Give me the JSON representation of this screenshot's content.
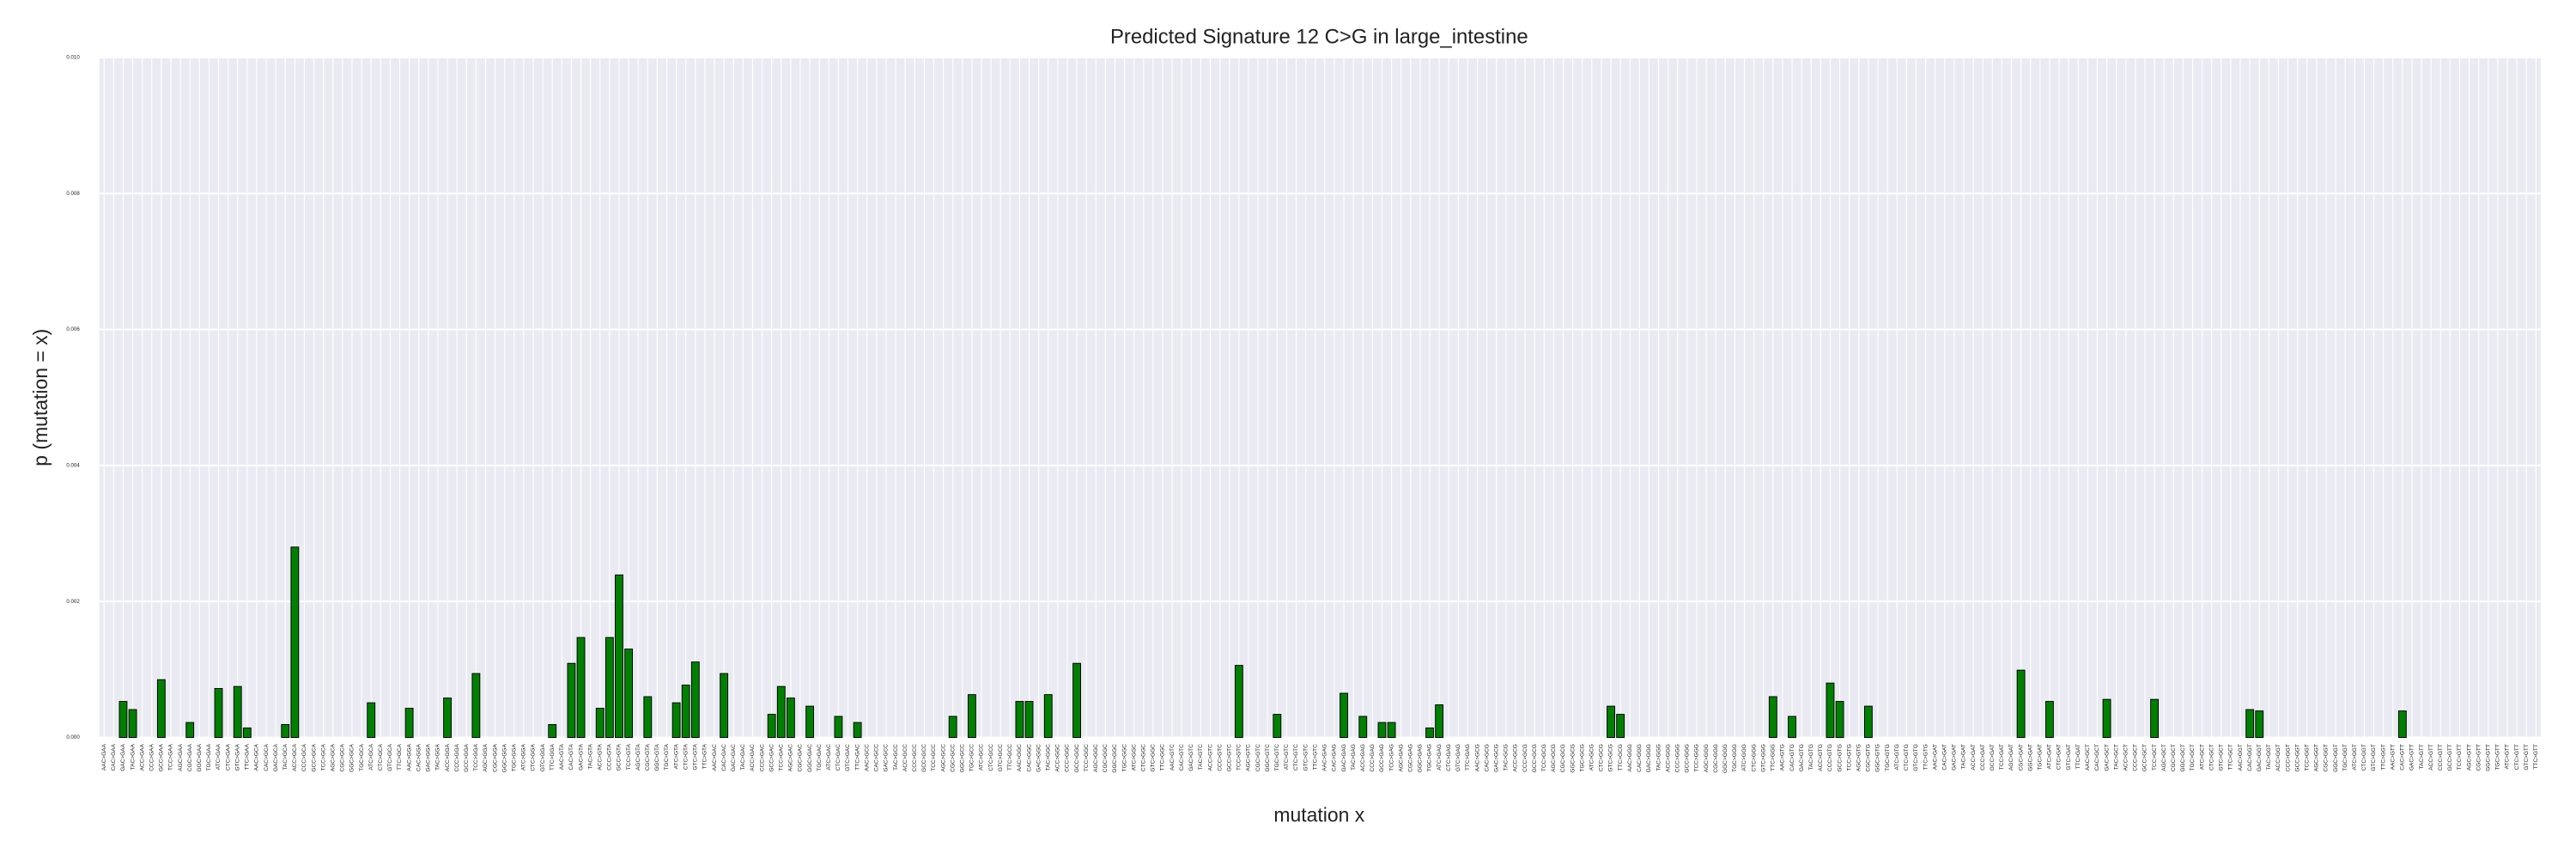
{
  "chart_data": {
    "type": "bar",
    "title": "Predicted Signature 12 C>G in large_intestine",
    "xlabel": "mutation x",
    "ylabel": "p (mutation = x)",
    "color": "#008000",
    "grid": true,
    "ylim": [
      0,
      0.01
    ],
    "yticks": [
      {
        "value": 0,
        "label": "0.000"
      },
      {
        "value": 0.002,
        "label": "0.002"
      },
      {
        "value": 0.004,
        "label": "0.004"
      },
      {
        "value": 0.006,
        "label": "0.006"
      },
      {
        "value": 0.008,
        "label": "0.008"
      },
      {
        "value": 0.01,
        "label": "0.010"
      }
    ],
    "categories": [
      "AAC>GAA",
      "CAC>GAA",
      "GAC>GAA",
      "TAC>GAA",
      "ACC>GAA",
      "CCC>GAA",
      "GCC>GAA",
      "TCC>GAA",
      "AGC>GAA",
      "CGC>GAA",
      "GGC>GAA",
      "TGC>GAA",
      "ATC>GAA",
      "CTC>GAA",
      "GTC>GAA",
      "TTC>GAA",
      "AAC>GCA",
      "CAC>GCA",
      "GAC>GCA",
      "TAC>GCA",
      "ACC>GCA",
      "CCC>GCA",
      "GCC>GCA",
      "TCC>GCA",
      "AGC>GCA",
      "CGC>GCA",
      "GGC>GCA",
      "TGC>GCA",
      "ATC>GCA",
      "CTC>GCA",
      "GTC>GCA",
      "TTC>GCA",
      "AAC>GGA",
      "CAC>GGA",
      "GAC>GGA",
      "TAC>GGA",
      "ACC>GGA",
      "CCC>GGA",
      "GCC>GGA",
      "TCC>GGA",
      "AGC>GGA",
      "CGC>GGA",
      "GGC>GGA",
      "TGC>GGA",
      "ATC>GGA",
      "CTC>GGA",
      "GTC>GGA",
      "TTC>GGA",
      "AAC>GTA",
      "CAC>GTA",
      "GAC>GTA",
      "TAC>GTA",
      "ACC>GTA",
      "CCC>GTA",
      "GCC>GTA",
      "TCC>GTA",
      "AGC>GTA",
      "CGC>GTA",
      "GGC>GTA",
      "TGC>GTA",
      "ATC>GTA",
      "CTC>GTA",
      "GTC>GTA",
      "TTC>GTA",
      "AAC>GAC",
      "CAC>GAC",
      "GAC>GAC",
      "TAC>GAC",
      "ACC>GAC",
      "CCC>GAC",
      "GCC>GAC",
      "TCC>GAC",
      "AGC>GAC",
      "CGC>GAC",
      "GGC>GAC",
      "TGC>GAC",
      "ATC>GAC",
      "CTC>GAC",
      "GTC>GAC",
      "TTC>GAC",
      "AAC>GCC",
      "CAC>GCC",
      "GAC>GCC",
      "TAC>GCC",
      "ACC>GCC",
      "CCC>GCC",
      "GCC>GCC",
      "TCC>GCC",
      "AGC>GCC",
      "CGC>GCC",
      "GGC>GCC",
      "TGC>GCC",
      "ATC>GCC",
      "CTC>GCC",
      "GTC>GCC",
      "TTC>GCC",
      "AAC>GGC",
      "CAC>GGC",
      "GAC>GGC",
      "TAC>GGC",
      "ACC>GGC",
      "CCC>GGC",
      "GCC>GGC",
      "TCC>GGC",
      "AGC>GGC",
      "CGC>GGC",
      "GGC>GGC",
      "TGC>GGC",
      "ATC>GGC",
      "CTC>GGC",
      "GTC>GGC",
      "TTC>GGC",
      "AAC>GTC",
      "CAC>GTC",
      "GAC>GTC",
      "TAC>GTC",
      "ACC>GTC",
      "CCC>GTC",
      "GCC>GTC",
      "TCC>GTC",
      "AGC>GTC",
      "CGC>GTC",
      "GGC>GTC",
      "TGC>GTC",
      "ATC>GTC",
      "CTC>GTC",
      "GTC>GTC",
      "TTC>GTC",
      "AAC>GAG",
      "CAC>GAG",
      "GAC>GAG",
      "TAC>GAG",
      "ACC>GAG",
      "CCC>GAG",
      "GCC>GAG",
      "TCC>GAG",
      "AGC>GAG",
      "CGC>GAG",
      "GGC>GAG",
      "TGC>GAG",
      "ATC>GAG",
      "CTC>GAG",
      "GTC>GAG",
      "TTC>GAG",
      "AAC>GCG",
      "CAC>GCG",
      "GAC>GCG",
      "TAC>GCG",
      "ACC>GCG",
      "CCC>GCG",
      "GCC>GCG",
      "TCC>GCG",
      "AGC>GCG",
      "CGC>GCG",
      "GGC>GCG",
      "TGC>GCG",
      "ATC>GCG",
      "CTC>GCG",
      "GTC>GCG",
      "TTC>GCG",
      "AAC>GGG",
      "CAC>GGG",
      "GAC>GGG",
      "TAC>GGG",
      "ACC>GGG",
      "CCC>GGG",
      "GCC>GGG",
      "TCC>GGG",
      "AGC>GGG",
      "CGC>GGG",
      "GGC>GGG",
      "TGC>GGG",
      "ATC>GGG",
      "CTC>GGG",
      "GTC>GGG",
      "TTC>GGG",
      "AAC>GTG",
      "CAC>GTG",
      "GAC>GTG",
      "TAC>GTG",
      "ACC>GTG",
      "CCC>GTG",
      "GCC>GTG",
      "TCC>GTG",
      "AGC>GTG",
      "CGC>GTG",
      "GGC>GTG",
      "TGC>GTG",
      "ATC>GTG",
      "CTC>GTG",
      "GTC>GTG",
      "TTC>GTG",
      "AAC>GAT",
      "CAC>GAT",
      "GAC>GAT",
      "TAC>GAT",
      "ACC>GAT",
      "CCC>GAT",
      "GCC>GAT",
      "TCC>GAT",
      "AGC>GAT",
      "CGC>GAT",
      "GGC>GAT",
      "TGC>GAT",
      "ATC>GAT",
      "CTC>GAT",
      "GTC>GAT",
      "TTC>GAT",
      "AAC>GCT",
      "CAC>GCT",
      "GAC>GCT",
      "TAC>GCT",
      "ACC>GCT",
      "CCC>GCT",
      "GCC>GCT",
      "TCC>GCT",
      "AGC>GCT",
      "CGC>GCT",
      "GGC>GCT",
      "TGC>GCT",
      "ATC>GCT",
      "CTC>GCT",
      "GTC>GCT",
      "TTC>GCT",
      "AAC>GGT",
      "CAC>GGT",
      "GAC>GGT",
      "TAC>GGT",
      "ACC>GGT",
      "CCC>GGT",
      "GCC>GGT",
      "TCC>GGT",
      "AGC>GGT",
      "CGC>GGT",
      "GGC>GGT",
      "TGC>GGT",
      "ATC>GGT",
      "CTC>GGT",
      "GTC>GGT",
      "TTC>GGT",
      "AAC>GTT",
      "CAC>GTT",
      "GAC>GTT",
      "TAC>GTT",
      "ACC>GTT",
      "CCC>GTT",
      "GCC>GTT",
      "TCC>GTT",
      "AGC>GTT",
      "CGC>GTT",
      "GGC>GTT",
      "TGC>GTT",
      "ATC>GTT",
      "CTC>GTT",
      "GTC>GTT",
      "TTC>GTT"
    ],
    "values": [
      0,
      0,
      0.00053,
      0.00041,
      0,
      0,
      0.00085,
      0,
      0,
      0.00022,
      0,
      0,
      0.00072,
      0,
      0.00075,
      0.00014,
      0,
      0,
      0,
      0.00019,
      0.0028,
      0,
      0,
      0,
      0,
      0,
      0,
      0,
      0.00051,
      0,
      0,
      0,
      0.00043,
      0,
      0,
      0,
      0.00058,
      0,
      0,
      0.00094,
      0,
      0,
      0,
      0,
      0,
      0,
      0,
      0.00019,
      0,
      0.00109,
      0.00147,
      0,
      0.00043,
      0.00147,
      0.00239,
      0.0013,
      0,
      0.0006,
      0,
      0,
      0.00051,
      0.00077,
      0.00111,
      0,
      0,
      0.00094,
      0,
      0,
      0,
      0,
      0.00034,
      0.00075,
      0.00058,
      0,
      0.00046,
      0,
      0,
      0.00031,
      0,
      0.00022,
      0,
      0,
      0,
      0,
      0,
      0,
      0,
      0,
      0,
      0.00031,
      0,
      0.00063,
      0,
      0,
      0,
      0,
      0.00053,
      0.00053,
      0,
      0.00063,
      0,
      0,
      0.00109,
      0,
      0,
      0,
      0,
      0,
      0,
      0,
      0,
      0,
      0,
      0,
      0,
      0,
      0,
      0,
      0,
      0.00106,
      0,
      0,
      0,
      0.00034,
      0,
      0,
      0,
      0,
      0,
      0,
      0.00065,
      0,
      0.00031,
      0,
      0.00022,
      0.00022,
      0,
      0,
      0,
      0.00014,
      0.00048,
      0,
      0,
      0,
      0,
      0,
      0,
      0,
      0,
      0,
      0,
      0,
      0,
      0,
      0,
      0,
      0,
      0,
      0.00046,
      0.00034,
      0,
      0,
      0,
      0,
      0,
      0,
      0,
      0,
      0,
      0,
      0,
      0,
      0,
      0,
      0,
      0.0006,
      0,
      0.00031,
      0,
      0,
      0,
      0.0008,
      0.00053,
      0,
      0,
      0.00046,
      0,
      0,
      0,
      0,
      0,
      0,
      0,
      0,
      0,
      0,
      0,
      0,
      0,
      0,
      0,
      0.00099,
      0,
      0,
      0.00053,
      0,
      0,
      0,
      0,
      0,
      0.00056,
      0,
      0,
      0,
      0,
      0.00056,
      0,
      0,
      0,
      0,
      0,
      0,
      0,
      0,
      0,
      0.00041,
      0.00039,
      0,
      0,
      0,
      0,
      0,
      0,
      0,
      0,
      0,
      0,
      0,
      0,
      0,
      0,
      0.00039,
      0,
      0,
      0,
      0,
      0,
      0,
      0,
      0,
      0,
      0,
      0,
      0,
      0,
      0
    ]
  }
}
